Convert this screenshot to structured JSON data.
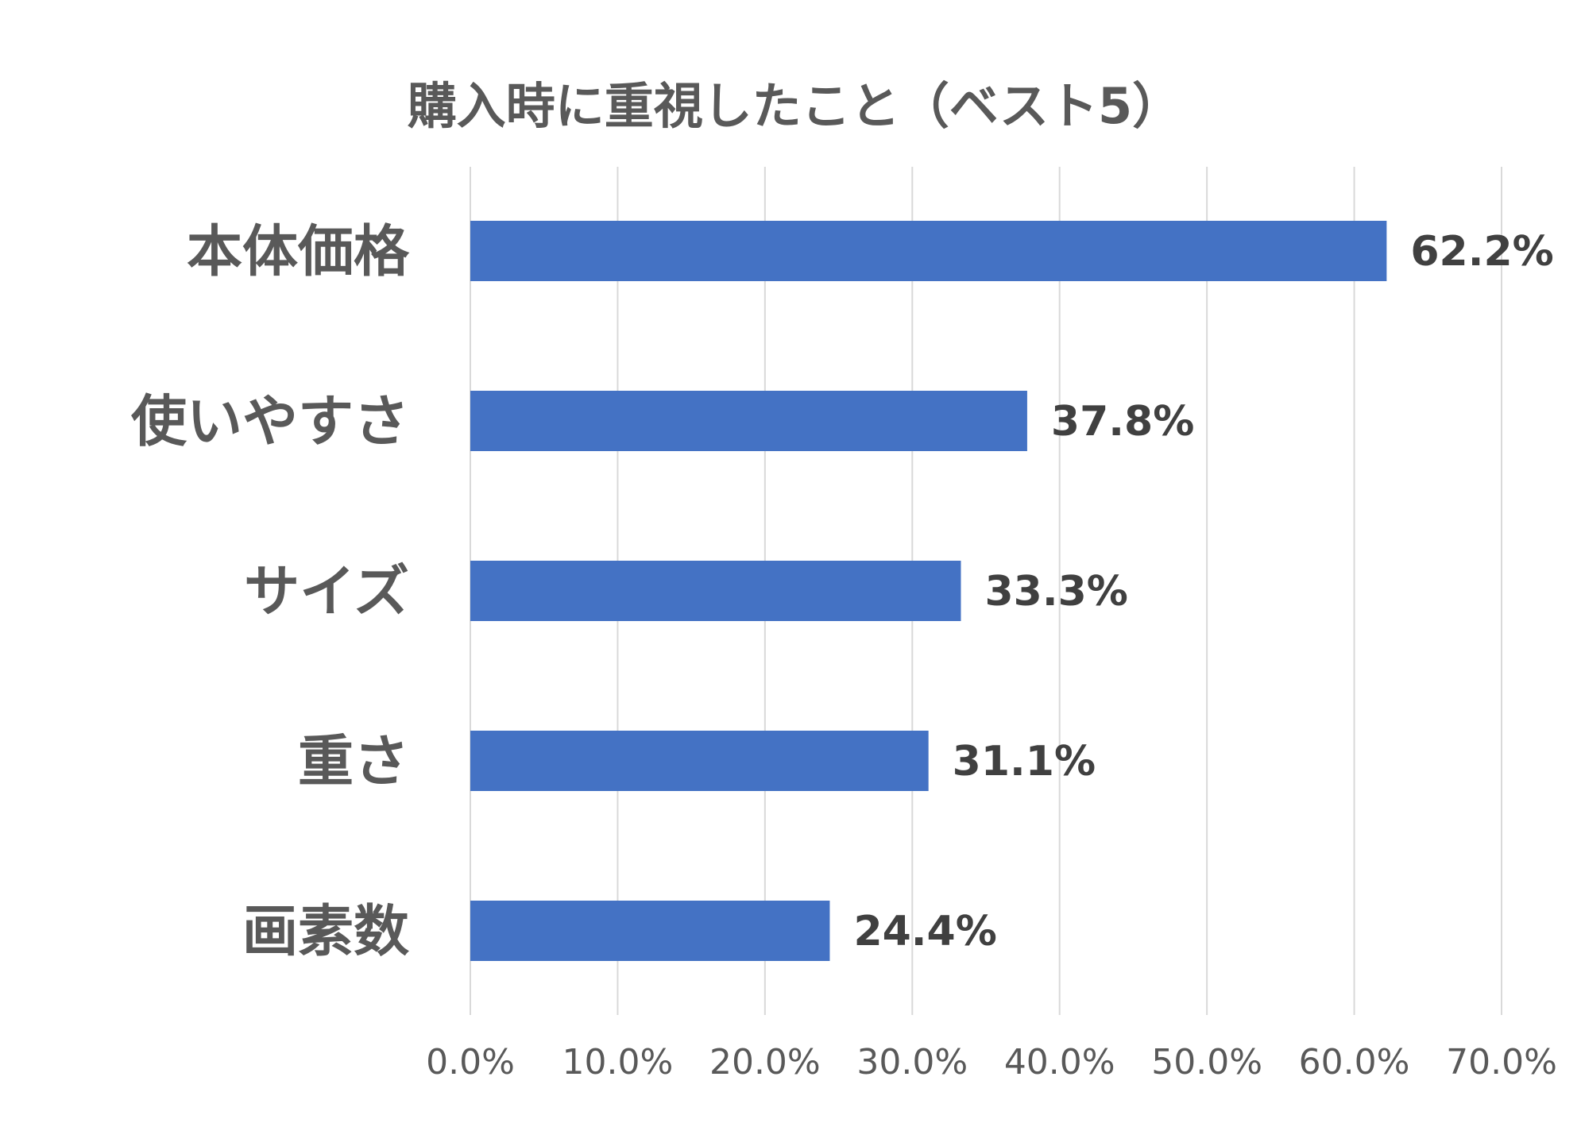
{
  "chart_data": {
    "type": "bar",
    "orientation": "horizontal",
    "title": "購入時に重視したこと（ベスト5）",
    "xlabel": "",
    "ylabel": "",
    "categories": [
      "本体価格",
      "使いやすさ",
      "サイズ",
      "重さ",
      "画素数"
    ],
    "values": [
      62.2,
      37.8,
      33.3,
      31.1,
      24.4
    ],
    "data_labels": [
      "62.2%",
      "37.8%",
      "33.3%",
      "31.1%",
      "24.4%"
    ],
    "xlim": [
      0,
      70
    ],
    "x_ticks": [
      0,
      10,
      20,
      30,
      40,
      50,
      60,
      70
    ],
    "x_tick_labels": [
      "0.0%",
      "10.0%",
      "20.0%",
      "30.0%",
      "40.0%",
      "50.0%",
      "60.0%",
      "70.0%"
    ],
    "grid": true,
    "legend": "none",
    "bar_color": "#4472C4",
    "grid_color": "#D9D9D9"
  }
}
